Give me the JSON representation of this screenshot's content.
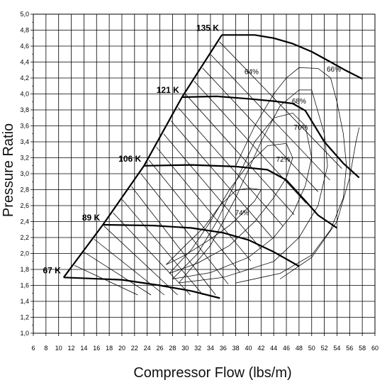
{
  "chart_data": {
    "type": "compressor map",
    "xlabel": "Compressor Flow (lbs/m)",
    "ylabel": "Pressure Ratio",
    "xlim": [
      6,
      60
    ],
    "ylim": [
      1.0,
      5.0
    ],
    "x_ticks": [
      "6",
      "8",
      "10",
      "12",
      "14",
      "16",
      "18",
      "20",
      "22",
      "24",
      "26",
      "28",
      "30",
      "32",
      "34",
      "36",
      "38",
      "40",
      "42",
      "44",
      "46",
      "48",
      "50",
      "52",
      "54",
      "56",
      "58",
      "60"
    ],
    "y_ticks": [
      "1,0",
      "1,2",
      "1,4",
      "1,6",
      "1,8",
      "2,0",
      "2,2",
      "2,4",
      "2,6",
      "2,8",
      "3,0",
      "3,2",
      "3,4",
      "3,6",
      "3,8",
      "4,0",
      "4,2",
      "4,4",
      "4,6",
      "4,8",
      "5,0"
    ],
    "surge_line": [
      [
        10.8,
        1.7
      ],
      [
        17.0,
        2.36
      ],
      [
        23.5,
        3.1
      ],
      [
        29.5,
        3.96
      ],
      [
        35.8,
        4.74
      ]
    ],
    "speed_lines": [
      {
        "label": "67 K",
        "points": [
          [
            10.8,
            1.7
          ],
          [
            20,
            1.67
          ],
          [
            26,
            1.6
          ],
          [
            31,
            1.53
          ],
          [
            35.5,
            1.44
          ]
        ]
      },
      {
        "label": "89 K",
        "points": [
          [
            17.0,
            2.36
          ],
          [
            25,
            2.35
          ],
          [
            31,
            2.32
          ],
          [
            36,
            2.26
          ],
          [
            40,
            2.17
          ],
          [
            44,
            2.02
          ],
          [
            48,
            1.84
          ]
        ]
      },
      {
        "label": "106 K",
        "points": [
          [
            23.5,
            3.1
          ],
          [
            31,
            3.11
          ],
          [
            38,
            3.09
          ],
          [
            43,
            3.05
          ],
          [
            46,
            2.92
          ],
          [
            49,
            2.66
          ],
          [
            51,
            2.48
          ],
          [
            54,
            2.32
          ]
        ]
      },
      {
        "label": "121 K",
        "points": [
          [
            29.5,
            3.96
          ],
          [
            35,
            3.97
          ],
          [
            40,
            3.94
          ],
          [
            44,
            3.91
          ],
          [
            47,
            3.88
          ],
          [
            49,
            3.79
          ],
          [
            52,
            3.4
          ],
          [
            55,
            3.13
          ],
          [
            57.5,
            2.95
          ]
        ]
      },
      {
        "label": "135 K",
        "points": [
          [
            35.8,
            4.74
          ],
          [
            41,
            4.74
          ],
          [
            44,
            4.7
          ],
          [
            47,
            4.63
          ],
          [
            50,
            4.53
          ],
          [
            53,
            4.4
          ],
          [
            55.5,
            4.29
          ],
          [
            58,
            4.19
          ]
        ]
      }
    ],
    "efficiency_islands": [
      {
        "label": "74%",
        "points": [
          [
            27,
            1.86
          ],
          [
            30,
            2.1
          ],
          [
            33,
            2.33
          ],
          [
            35.5,
            2.6
          ],
          [
            38,
            2.79
          ],
          [
            40,
            2.82
          ],
          [
            42,
            2.8
          ],
          [
            41,
            2.66
          ],
          [
            39,
            2.5
          ],
          [
            37,
            2.35
          ],
          [
            34,
            2.18
          ],
          [
            30,
            1.98
          ],
          [
            27,
            1.86
          ]
        ]
      },
      {
        "label": "72%",
        "points": [
          [
            27.5,
            1.75
          ],
          [
            31,
            2.05
          ],
          [
            34,
            2.4
          ],
          [
            37,
            2.8
          ],
          [
            40,
            3.12
          ],
          [
            43,
            3.35
          ],
          [
            46,
            3.38
          ],
          [
            47,
            3.2
          ],
          [
            46,
            2.95
          ],
          [
            44,
            2.7
          ],
          [
            41,
            2.4
          ],
          [
            37,
            2.1
          ],
          [
            32,
            1.88
          ],
          [
            27.5,
            1.75
          ]
        ]
      },
      {
        "label": "70%",
        "points": [
          [
            28,
            1.68
          ],
          [
            32,
            2.0
          ],
          [
            35,
            2.4
          ],
          [
            38,
            2.9
          ],
          [
            41,
            3.4
          ],
          [
            44,
            3.7
          ],
          [
            47,
            3.76
          ],
          [
            49,
            3.6
          ],
          [
            50,
            3.2
          ],
          [
            49,
            2.85
          ],
          [
            47,
            2.5
          ],
          [
            44,
            2.2
          ],
          [
            40,
            1.95
          ],
          [
            34,
            1.76
          ],
          [
            28,
            1.68
          ]
        ]
      },
      {
        "label": "68%",
        "points": [
          [
            29,
            1.63
          ],
          [
            34,
            2.1
          ],
          [
            38,
            2.7
          ],
          [
            42,
            3.4
          ],
          [
            45,
            3.85
          ],
          [
            48,
            4.05
          ],
          [
            50,
            4.05
          ],
          [
            52,
            3.5
          ],
          [
            52.5,
            3.1
          ],
          [
            51,
            2.6
          ],
          [
            48,
            2.2
          ],
          [
            44,
            1.9
          ],
          [
            36,
            1.7
          ],
          [
            29,
            1.63
          ]
        ]
      },
      {
        "label": "66%",
        "points": [
          [
            38,
            3.1
          ],
          [
            41,
            3.6
          ],
          [
            44,
            4.0
          ],
          [
            46,
            4.2
          ],
          [
            48,
            4.33
          ],
          [
            51,
            4.32
          ],
          [
            53,
            4.2
          ],
          [
            54,
            3.9
          ],
          [
            55,
            3.5
          ],
          [
            55.5,
            3.1
          ],
          [
            55,
            2.7
          ],
          [
            53,
            2.3
          ],
          [
            50,
            1.98
          ],
          [
            45,
            1.75
          ],
          [
            38,
            1.63
          ]
        ]
      },
      {
        "label": "64%",
        "points": [
          [
            45,
            1.68
          ],
          [
            50,
            1.95
          ],
          [
            54,
            2.4
          ],
          [
            56,
            2.95
          ],
          [
            57,
            3.4
          ],
          [
            57.5,
            3.58
          ]
        ]
      }
    ],
    "efficiency_labels": [
      "64%",
      "66%",
      "68%",
      "70%",
      "72%",
      "74%"
    ]
  }
}
